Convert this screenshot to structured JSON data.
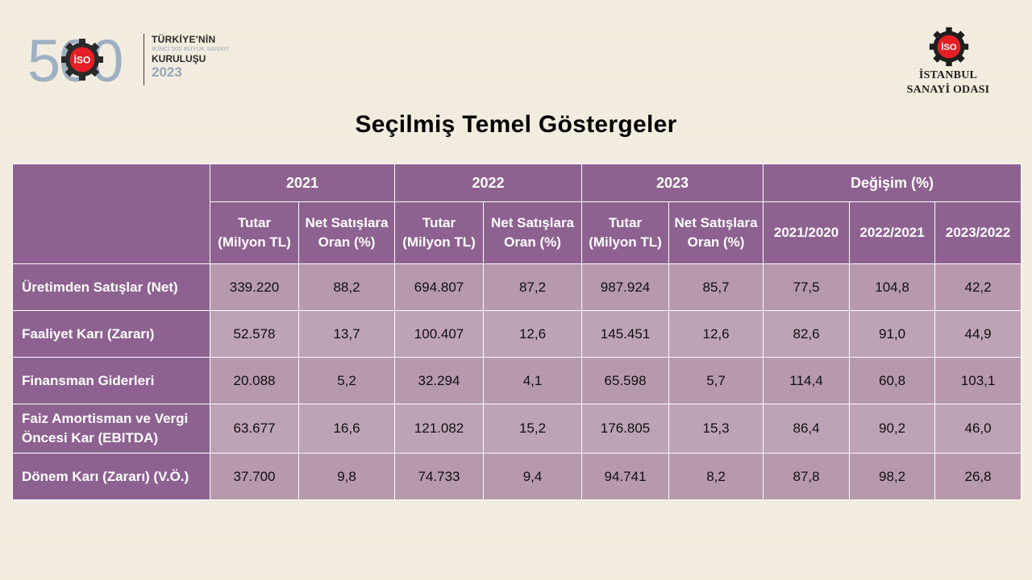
{
  "logos": {
    "left": {
      "number": "500",
      "line1": "TÜRKİYE'NİN",
      "line2": "İKİNCİ 500 BÜYÜK SANAYİ",
      "line3": "KURULUŞU",
      "year": "2023",
      "badge": "İSO",
      "colors": {
        "gray": "#9fb0c2",
        "red": "#e31e24",
        "dark": "#2a2a2a"
      }
    },
    "right": {
      "badge": "İSO",
      "line1": "İSTANBUL",
      "line2": "SANAYİ ODASI"
    }
  },
  "title": "Seçilmiş Temel Göstergeler",
  "table": {
    "group_headers": [
      "2021",
      "2022",
      "2023",
      "Değişim (%)"
    ],
    "sub_headers": [
      [
        "Tutar",
        "(Milyon TL)"
      ],
      [
        "Net Satışlara",
        "Oran (%)"
      ],
      [
        "Tutar",
        "(Milyon TL)"
      ],
      [
        "Net Satışlara",
        "Oran (%)"
      ],
      [
        "Tutar",
        "(Milyon TL)"
      ],
      [
        "Net Satışlara",
        "Oran (%)"
      ],
      [
        "2021/2020"
      ],
      [
        "2022/2021"
      ],
      [
        "2023/2022"
      ]
    ],
    "rows": [
      {
        "label": [
          "Üretimden Satışlar (Net)"
        ],
        "values": [
          "339.220",
          "88,2",
          "694.807",
          "87,2",
          "987.924",
          "85,7",
          "77,5",
          "104,8",
          "42,2"
        ]
      },
      {
        "label": [
          "Faaliyet Karı (Zararı)"
        ],
        "values": [
          "52.578",
          "13,7",
          "100.407",
          "12,6",
          "145.451",
          "12,6",
          "82,6",
          "91,0",
          "44,9"
        ]
      },
      {
        "label": [
          "Finansman Giderleri"
        ],
        "values": [
          "20.088",
          "5,2",
          "32.294",
          "4,1",
          "65.598",
          "5,7",
          "114,4",
          "60,8",
          "103,1"
        ]
      },
      {
        "label": [
          "Faiz Amortisman ve Vergi",
          "Öncesi Kar (EBITDA)"
        ],
        "values": [
          "63.677",
          "16,6",
          "121.082",
          "15,2",
          "176.805",
          "15,3",
          "86,4",
          "90,2",
          "46,0"
        ]
      },
      {
        "label": [
          "Dönem Karı (Zararı) (V.Ö.)"
        ],
        "values": [
          "37.700",
          "9,8",
          "74.733",
          "9,4",
          "94.741",
          "8,2",
          "87,8",
          "98,2",
          "26,8"
        ]
      }
    ],
    "colors": {
      "header": "#8e6290",
      "cell": "#b699ad",
      "cell_alt": "#bda3b5",
      "border": "#ffffff"
    }
  }
}
